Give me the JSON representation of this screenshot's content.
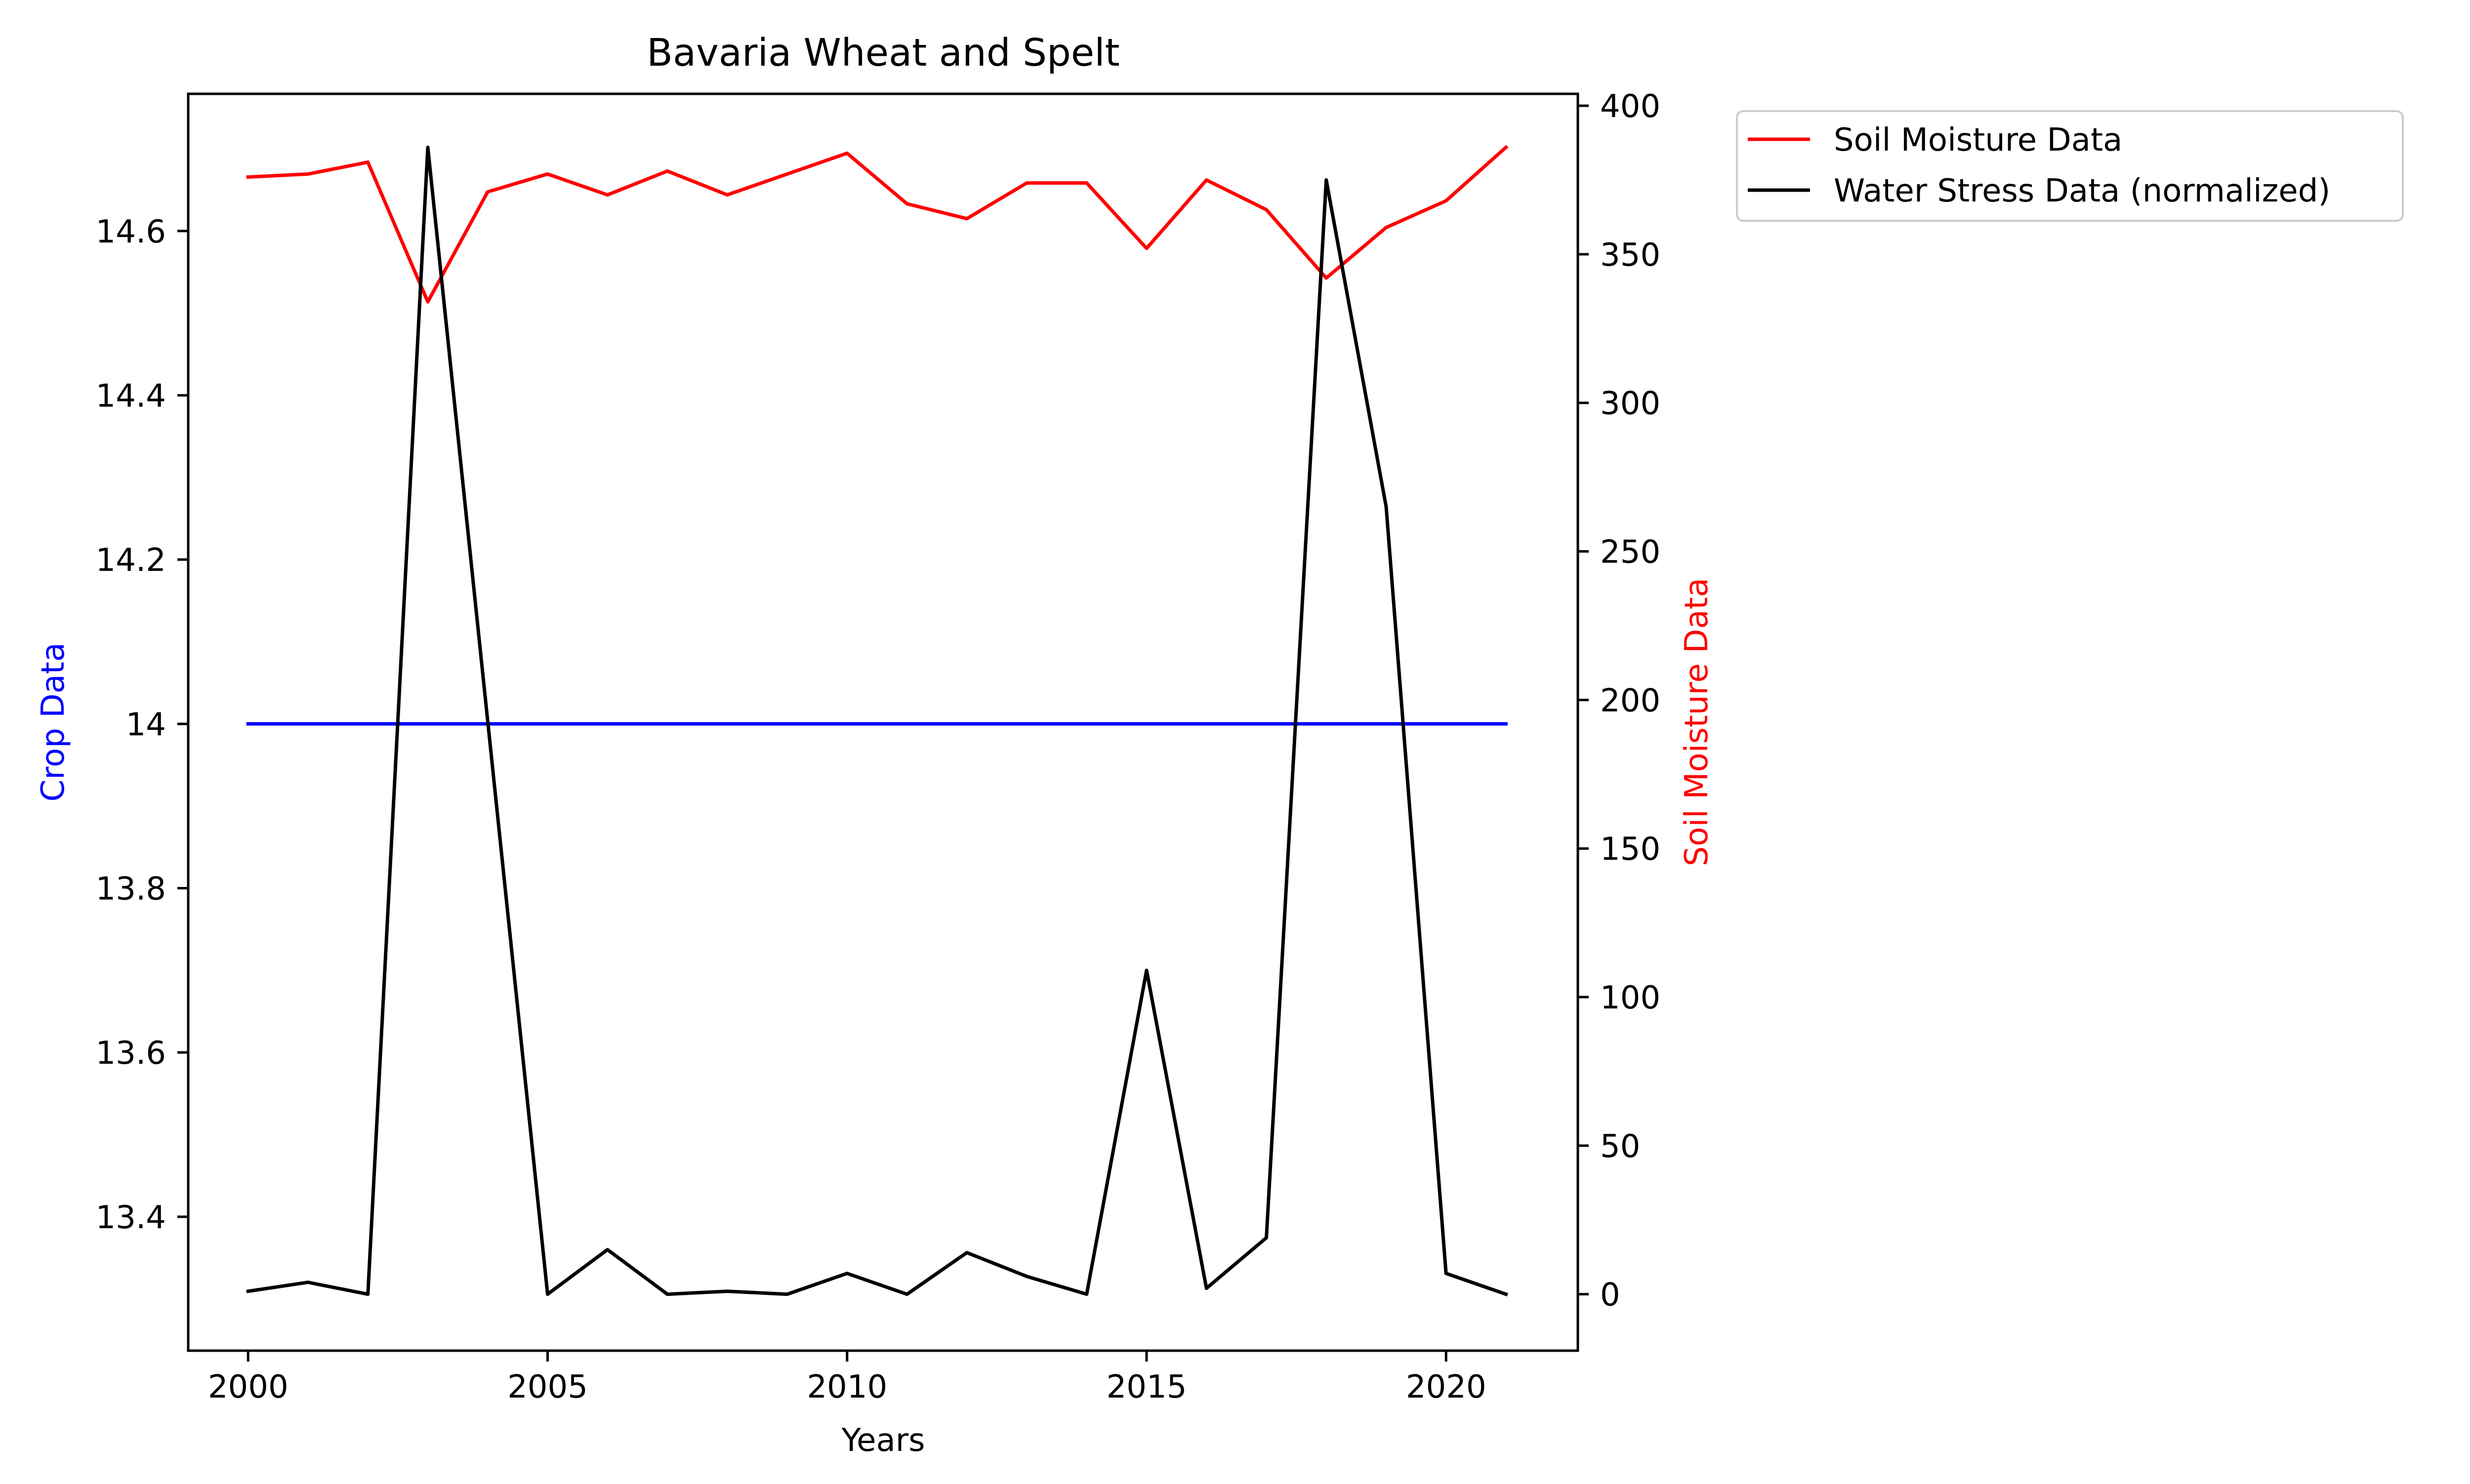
{
  "chart_data": {
    "type": "line",
    "title": "Bavaria Wheat and Spelt",
    "xlabel": "Years",
    "ylabel_left": "Crop Data",
    "ylabel_right": "Soil Moisture Data",
    "x": [
      2000,
      2001,
      2002,
      2003,
      2004,
      2005,
      2006,
      2007,
      2008,
      2009,
      2010,
      2011,
      2012,
      2013,
      2014,
      2015,
      2016,
      2017,
      2018,
      2019,
      2020,
      2021
    ],
    "xlim": [
      1999,
      2022.2
    ],
    "x_ticks": [
      2000,
      2005,
      2010,
      2015,
      2020
    ],
    "ylim_left": [
      13.237,
      14.767
    ],
    "y_ticks_left": [
      13.4,
      13.6,
      13.8,
      14.0,
      14.2,
      14.4,
      14.6
    ],
    "ylim_right": [
      -19,
      404
    ],
    "y_ticks_right": [
      0,
      50,
      100,
      150,
      200,
      250,
      300,
      350,
      400
    ],
    "series": [
      {
        "axis": "left",
        "color": "#0000ff",
        "values": [
          14.0,
          14.0,
          14.0,
          14.0,
          14.0,
          14.0,
          14.0,
          14.0,
          14.0,
          14.0,
          14.0,
          14.0,
          14.0,
          14.0,
          14.0,
          14.0,
          14.0,
          14.0,
          14.0,
          14.0,
          14.0,
          14.0
        ]
      },
      {
        "name": "Soil Moisture Data",
        "axis": "right",
        "color": "#ff0000",
        "values": [
          376,
          377,
          381,
          334,
          371,
          377,
          370,
          378,
          370,
          377,
          384,
          367,
          362,
          374,
          374,
          352,
          375,
          365,
          342,
          359,
          368,
          386
        ]
      },
      {
        "name": "Water Stress Data (normalized)",
        "axis": "right",
        "color": "#000000",
        "values": [
          1,
          4,
          0,
          386,
          193,
          0,
          15,
          0,
          1,
          0,
          7,
          0,
          14,
          6,
          0,
          109,
          2,
          19,
          375,
          265,
          7,
          0
        ]
      }
    ],
    "legend": {
      "placement": "outside-top-right",
      "entries": [
        "Soil Moisture Data",
        "Water Stress Data (normalized)"
      ]
    },
    "grid": false
  }
}
